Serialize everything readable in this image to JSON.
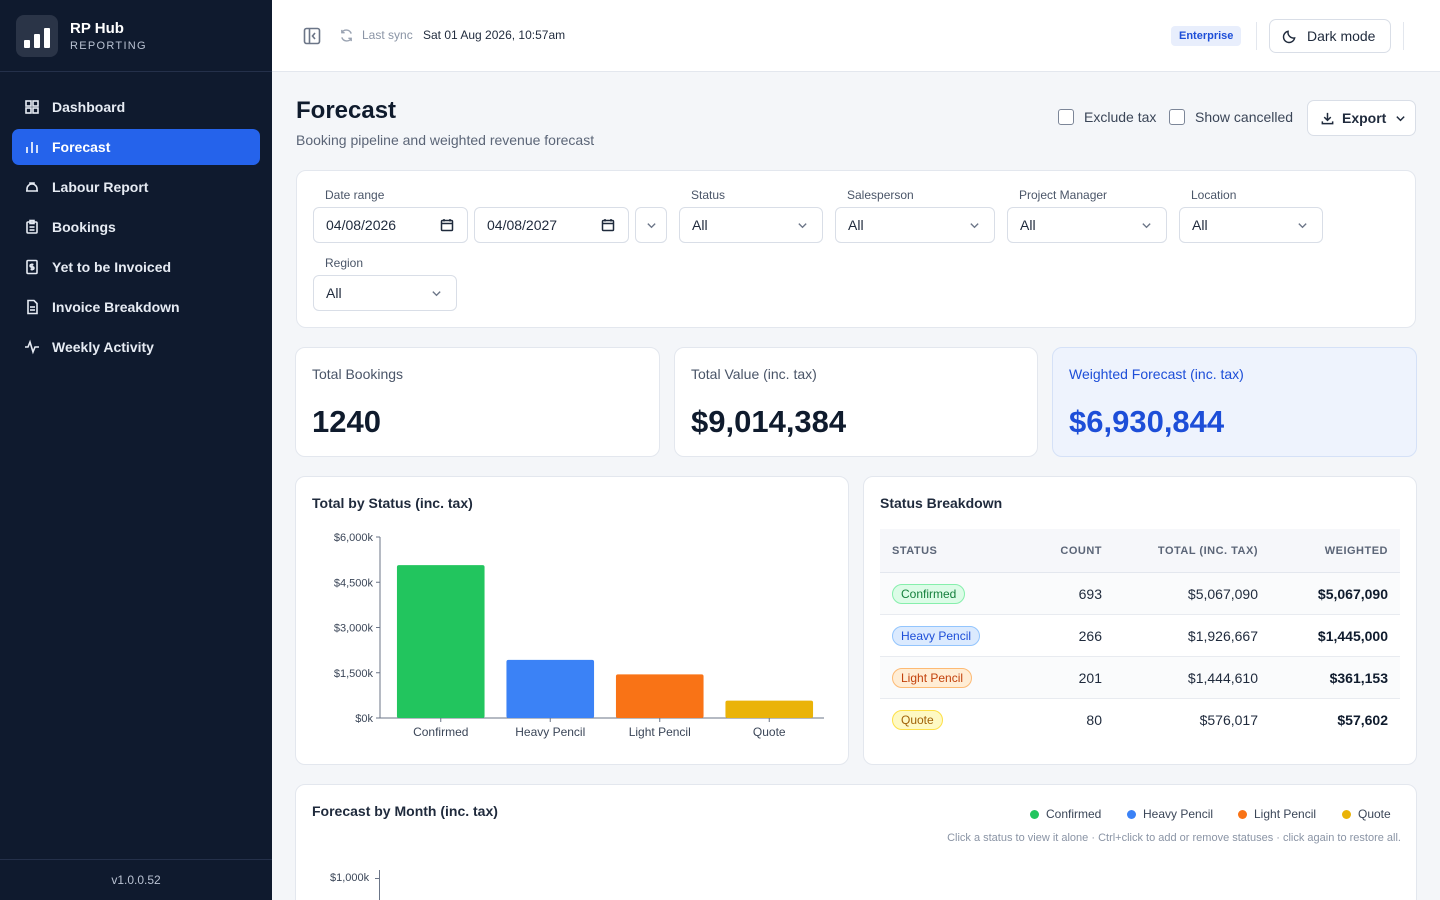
{
  "brand": {
    "title": "RP Hub",
    "subtitle": "REPORTING"
  },
  "nav": [
    {
      "label": "Dashboard",
      "icon": "grid-icon",
      "active": false
    },
    {
      "label": "Forecast",
      "icon": "bar-chart-icon",
      "active": true
    },
    {
      "label": "Labour Report",
      "icon": "hard-hat-icon",
      "active": false
    },
    {
      "label": "Bookings",
      "icon": "clipboard-icon",
      "active": false
    },
    {
      "label": "Yet to be Invoiced",
      "icon": "receipt-dollar-icon",
      "active": false
    },
    {
      "label": "Invoice Breakdown",
      "icon": "document-icon",
      "active": false
    },
    {
      "label": "Weekly Activity",
      "icon": "activity-icon",
      "active": false
    }
  ],
  "version": "v1.0.0.52",
  "topbar": {
    "sync_label": "Last sync",
    "sync_value": "Sat 01 Aug 2026, 10:57am",
    "plan_badge": "Enterprise",
    "dark_mode_label": "Dark mode"
  },
  "header": {
    "title": "Forecast",
    "subtitle": "Booking pipeline and weighted revenue forecast",
    "exclude_tax_label": "Exclude tax",
    "exclude_tax_checked": false,
    "show_cancelled_label": "Show cancelled",
    "show_cancelled_checked": false,
    "export_label": "Export"
  },
  "filters": {
    "date_range_label": "Date range",
    "date_from": "04/08/2026",
    "date_to": "04/08/2027",
    "status_label": "Status",
    "status_value": "All",
    "salesperson_label": "Salesperson",
    "salesperson_value": "All",
    "pm_label": "Project Manager",
    "pm_value": "All",
    "location_label": "Location",
    "location_value": "All",
    "region_label": "Region",
    "region_value": "All"
  },
  "kpis": {
    "total_bookings_label": "Total Bookings",
    "total_bookings_value": "1240",
    "total_value_label": "Total Value (inc. tax)",
    "total_value_value": "$9,014,384",
    "weighted_label": "Weighted Forecast (inc. tax)",
    "weighted_value": "$6,930,844"
  },
  "status_chart": {
    "title": "Total by Status (inc. tax)"
  },
  "chart_data": [
    {
      "type": "bar",
      "title": "Total by Status (inc. tax)",
      "categories": [
        "Confirmed",
        "Heavy Pencil",
        "Light Pencil",
        "Quote"
      ],
      "values": [
        5067090,
        1926667,
        1444610,
        576017
      ],
      "colors": [
        "#22c55e",
        "#3b82f6",
        "#f97316",
        "#eab308"
      ],
      "ylim": [
        0,
        6000000
      ],
      "yticks": [
        "$0k",
        "$1,500k",
        "$3,000k",
        "$4,500k",
        "$6,000k"
      ],
      "ytick_values": [
        0,
        1500000,
        3000000,
        4500000,
        6000000
      ],
      "grid": false
    },
    {
      "type": "line",
      "title": "Forecast by Month (inc. tax)",
      "series": [
        {
          "name": "Confirmed",
          "values": []
        },
        {
          "name": "Heavy Pencil",
          "values": []
        },
        {
          "name": "Light Pencil",
          "values": []
        },
        {
          "name": "Quote",
          "values": []
        }
      ],
      "yticks": [
        "$1,000k"
      ],
      "legend": "top-right"
    }
  ],
  "breakdown": {
    "title": "Status Breakdown",
    "columns": [
      "STATUS",
      "COUNT",
      "TOTAL (INC. TAX)",
      "WEIGHTED"
    ],
    "rows": [
      {
        "status": "Confirmed",
        "count": "693",
        "total": "$5,067,090",
        "weighted": "$5,067,090",
        "bg": "#dcfce7",
        "fg": "#15803d",
        "border": "#86efac"
      },
      {
        "status": "Heavy Pencil",
        "count": "266",
        "total": "$1,926,667",
        "weighted": "$1,445,000",
        "bg": "#dbeafe",
        "fg": "#1d4ed8",
        "border": "#93c5fd"
      },
      {
        "status": "Light Pencil",
        "count": "201",
        "total": "$1,444,610",
        "weighted": "$361,153",
        "bg": "#ffedd5",
        "fg": "#c2410c",
        "border": "#fdba74"
      },
      {
        "status": "Quote",
        "count": "80",
        "total": "$576,017",
        "weighted": "$57,602",
        "bg": "#fef9c3",
        "fg": "#a16207",
        "border": "#fde047"
      }
    ]
  },
  "month_chart": {
    "title": "Forecast by Month (inc. tax)",
    "legend": [
      {
        "label": "Confirmed",
        "color": "#22c55e"
      },
      {
        "label": "Heavy Pencil",
        "color": "#3b82f6"
      },
      {
        "label": "Light Pencil",
        "color": "#f97316"
      },
      {
        "label": "Quote",
        "color": "#eab308"
      }
    ],
    "hint": "Click a status to view it alone · Ctrl+click to add or remove statuses · click again to restore all.",
    "ytick_top": "$1,000k"
  }
}
